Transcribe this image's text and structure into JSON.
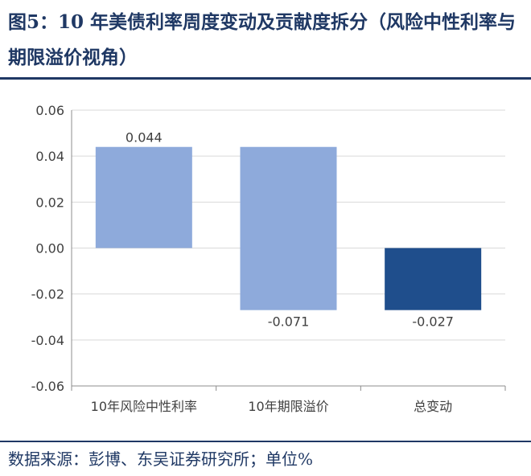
{
  "figure": {
    "title": "图5：10 年美债利率周度变动及贡献度拆分（风险中性利率与期限溢价视角）",
    "source": "数据来源：彭博、东吴证券研究所；单位%"
  },
  "colors": {
    "title": "#1f3864",
    "light_bar": "#8eaadb",
    "dark_bar": "#1f4e8c",
    "axis_text": "#404040",
    "gridline": "#d9d9d9"
  },
  "chart_data": {
    "type": "bar",
    "subtype": "waterfall",
    "categories": [
      "10年风险中性利率",
      "10年期限溢价",
      "总变动"
    ],
    "values": [
      0.044,
      -0.071,
      -0.027
    ],
    "data_labels": [
      "0.044",
      "-0.071",
      "-0.027"
    ],
    "ylim": [
      -0.06,
      0.06
    ],
    "yticks": [
      0.06,
      0.04,
      0.02,
      0.0,
      -0.02,
      -0.04,
      -0.06
    ],
    "ytick_labels": [
      "0.06",
      "0.04",
      "0.02",
      "0.00",
      "-0.02",
      "-0.04",
      "-0.06"
    ],
    "grid": "horizontal"
  }
}
